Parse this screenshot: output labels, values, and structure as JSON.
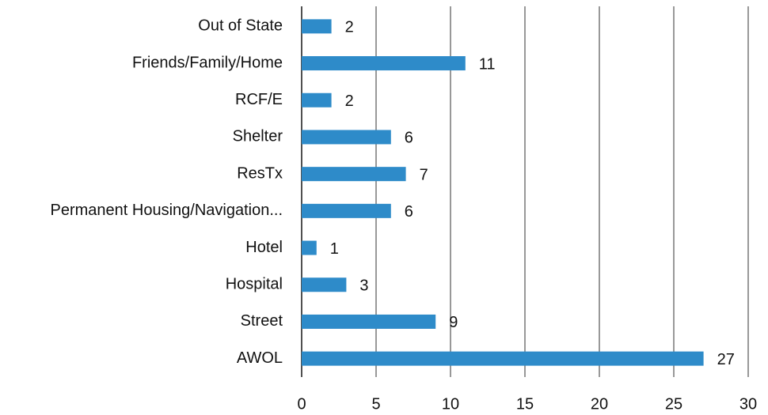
{
  "chart_data": {
    "type": "bar",
    "orientation": "horizontal",
    "categories": [
      "Out of State",
      "Friends/Family/Home",
      "RCF/E",
      "Shelter",
      "ResTx",
      "Permanent Housing/Navigation...",
      "Hotel",
      "Hospital",
      "Street",
      "AWOL"
    ],
    "values": [
      2,
      11,
      2,
      6,
      7,
      6,
      1,
      3,
      9,
      27
    ],
    "color": "#2e8bc9",
    "xlim": [
      0,
      30
    ],
    "xticks": [
      0,
      5,
      10,
      15,
      20,
      25,
      30
    ],
    "grid": true
  }
}
